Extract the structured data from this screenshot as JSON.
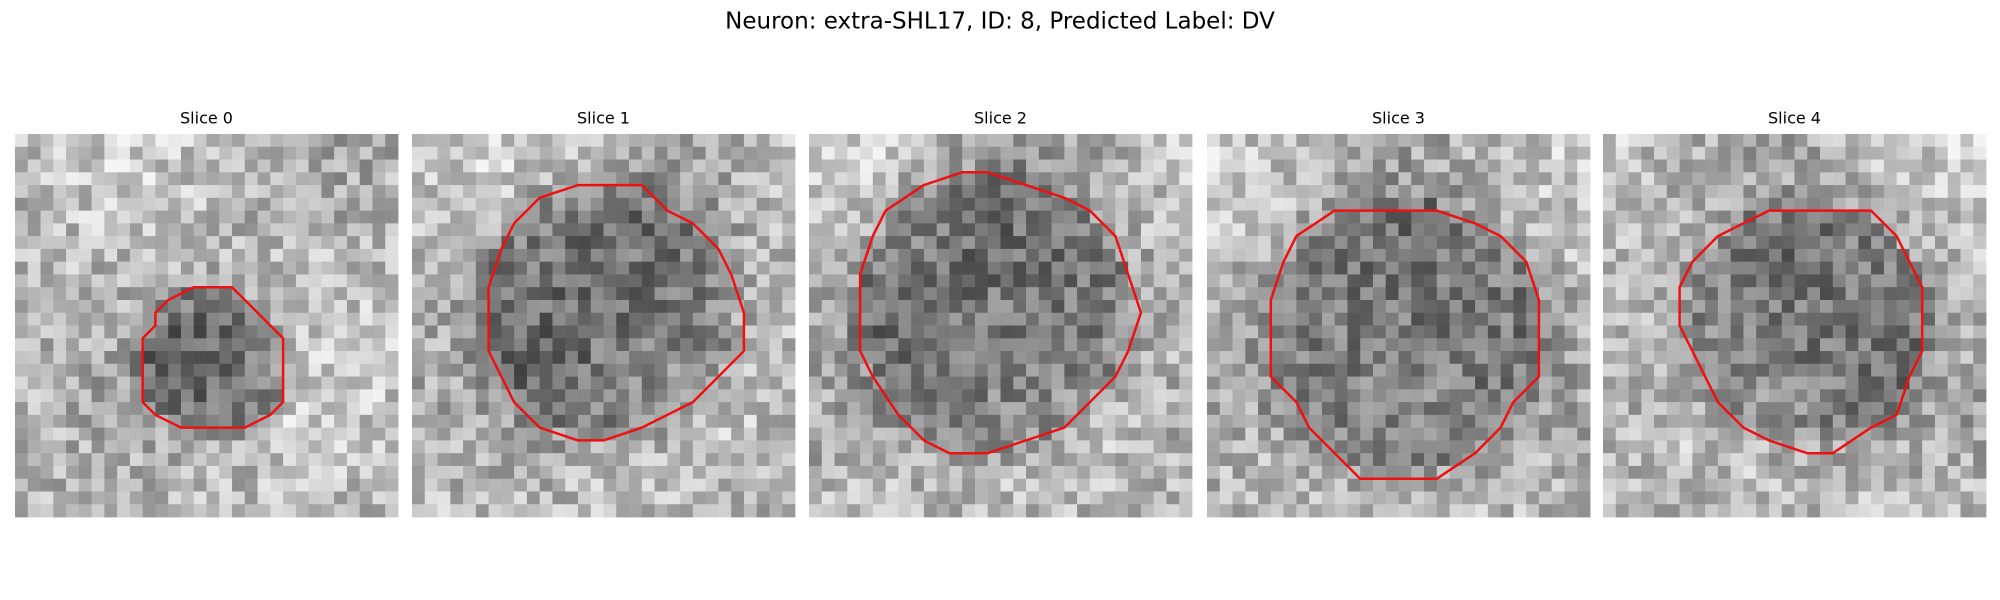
{
  "title": "Neuron: extra-SHL17, ID: 8, Predicted Label: DV",
  "panels": [
    {
      "title": "Slice 0"
    },
    {
      "title": "Slice 1"
    },
    {
      "title": "Slice 2"
    },
    {
      "title": "Slice 3"
    },
    {
      "title": "Slice 4"
    }
  ]
}
